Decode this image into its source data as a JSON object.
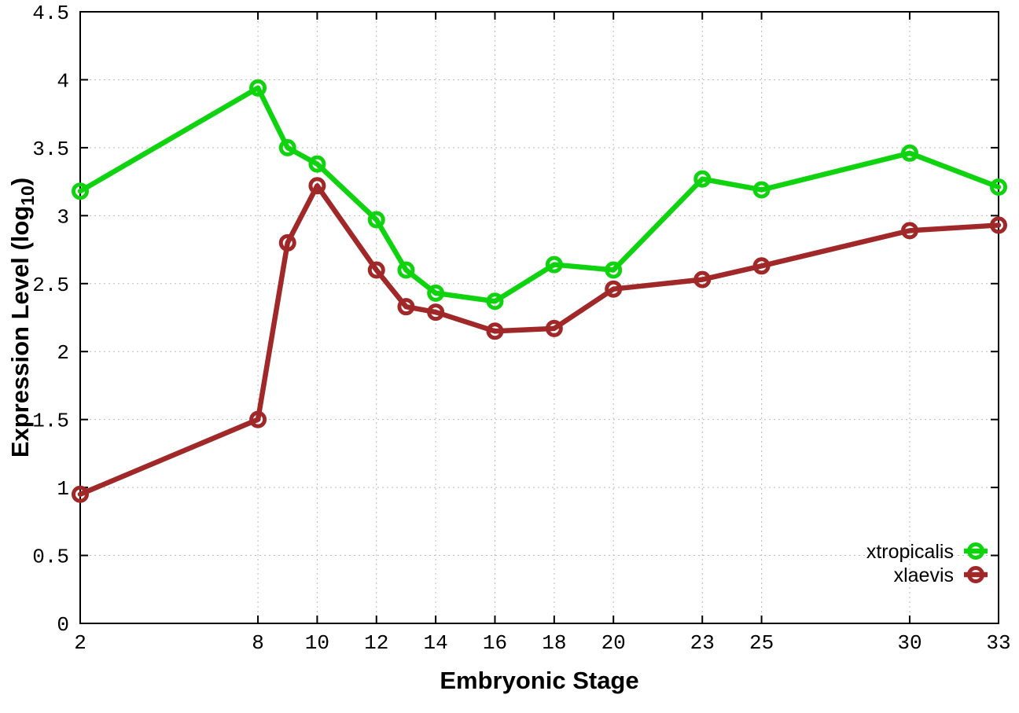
{
  "figure": {
    "background": "#ffffff",
    "border_color": "#000000",
    "grid_color": "#bbbbbb",
    "tick_color": "#000000",
    "text_color": "#000000"
  },
  "chart_data": {
    "type": "line",
    "title": "",
    "xlabel": "Embryonic Stage",
    "ylabel": {
      "pre": "Expression Level (log",
      "sub": "10",
      "post": ")"
    },
    "xlim": [
      2,
      33
    ],
    "ylim": [
      0,
      4.5
    ],
    "xticks": [
      2,
      8,
      10,
      12,
      14,
      16,
      18,
      20,
      23,
      25,
      30,
      33
    ],
    "yticks": [
      0,
      0.5,
      1,
      1.5,
      2,
      2.5,
      3,
      3.5,
      4,
      4.5
    ],
    "grid": true,
    "legend_position": "inside-right-lower",
    "x": [
      2,
      8,
      9,
      10,
      12,
      13,
      14,
      16,
      18,
      20,
      23,
      25,
      30,
      33
    ],
    "series": [
      {
        "name": "xtropicalis",
        "color": "#0fd30f",
        "marker": "open-circle",
        "values": [
          3.18,
          3.94,
          3.5,
          3.38,
          2.97,
          2.6,
          2.43,
          2.37,
          2.64,
          2.6,
          3.27,
          3.19,
          3.46,
          3.21
        ]
      },
      {
        "name": "xlaevis",
        "color": "#a02828",
        "marker": "open-circle",
        "values": [
          0.95,
          1.5,
          2.8,
          3.22,
          2.6,
          2.33,
          2.29,
          2.15,
          2.17,
          2.46,
          2.53,
          2.63,
          2.89,
          2.93
        ]
      }
    ]
  }
}
